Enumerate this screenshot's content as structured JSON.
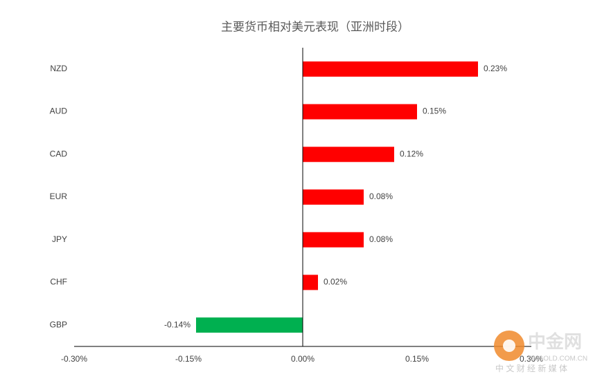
{
  "chart_data": {
    "type": "hbar",
    "title": "主要货币相对美元表现（亚洲时段）",
    "categories": [
      "NZD",
      "AUD",
      "CAD",
      "EUR",
      "JPY",
      "CHF",
      "GBP"
    ],
    "values": [
      0.23,
      0.15,
      0.12,
      0.08,
      0.08,
      0.02,
      -0.14
    ],
    "value_labels": [
      "0.23%",
      "0.15%",
      "0.12%",
      "0.08%",
      "0.08%",
      "0.02%",
      "-0.14%"
    ],
    "colors": [
      "#ff0000",
      "#ff0000",
      "#ff0000",
      "#ff0000",
      "#ff0000",
      "#ff0000",
      "#00b050"
    ],
    "xlim": [
      -0.3,
      0.3
    ],
    "xticks": [
      {
        "value": -0.3,
        "label": "-0.30%"
      },
      {
        "value": -0.15,
        "label": "-0.15%"
      },
      {
        "value": 0,
        "label": "0.00%"
      },
      {
        "value": 0.15,
        "label": "0.15%"
      },
      {
        "value": 0.3,
        "label": "0.30%"
      }
    ],
    "grid": false
  },
  "watermark": {
    "name": "中金网",
    "url": "CNGOLD.COM.CN",
    "slogan": "中 文 财 经 新 媒 体"
  }
}
